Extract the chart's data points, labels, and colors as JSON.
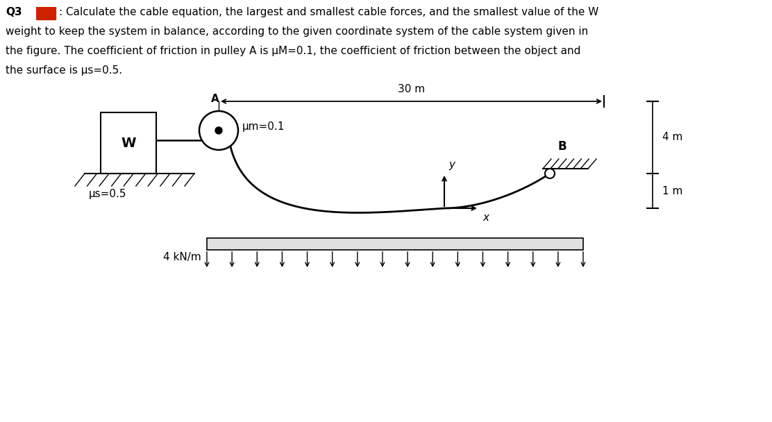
{
  "bg_color": "#ffffff",
  "fig_width": 11.12,
  "fig_height": 6.08,
  "dpi": 100,
  "text_color": "#000000",
  "label_30m": "30 m",
  "label_4m": "4 m",
  "label_1m": "1 m",
  "label_4kNm": "4 kN/m",
  "label_W": "W",
  "label_A": "A",
  "label_B": "B",
  "label_x": "x",
  "label_y": "y",
  "label_mu_m": "μm=0.1",
  "label_mu_s": "μs=0.5",
  "red_marker_color": "#cc2200"
}
